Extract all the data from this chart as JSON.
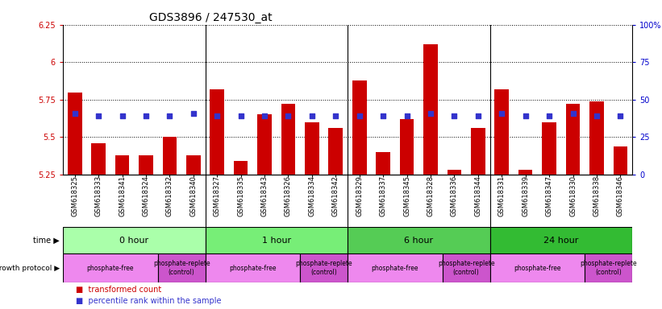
{
  "title": "GDS3896 / 247530_at",
  "samples": [
    "GSM618325",
    "GSM618333",
    "GSM618341",
    "GSM618324",
    "GSM618332",
    "GSM618340",
    "GSM618327",
    "GSM618335",
    "GSM618343",
    "GSM618326",
    "GSM618334",
    "GSM618342",
    "GSM618329",
    "GSM618337",
    "GSM618345",
    "GSM618328",
    "GSM618336",
    "GSM618344",
    "GSM618331",
    "GSM618339",
    "GSM618347",
    "GSM618330",
    "GSM618338",
    "GSM618346"
  ],
  "transformed_count": [
    5.8,
    5.46,
    5.38,
    5.38,
    5.5,
    5.38,
    5.82,
    5.34,
    5.65,
    5.72,
    5.6,
    5.56,
    5.88,
    5.4,
    5.62,
    6.12,
    5.28,
    5.56,
    5.82,
    5.28,
    5.6,
    5.72,
    5.74,
    5.44
  ],
  "percentile_rank": [
    5.66,
    5.64,
    5.64,
    5.64,
    5.64,
    5.66,
    5.64,
    5.64,
    5.64,
    5.64,
    5.64,
    5.64,
    5.64,
    5.64,
    5.64,
    5.66,
    5.64,
    5.64,
    5.66,
    5.64,
    5.64,
    5.66,
    5.64,
    5.64
  ],
  "ylim": [
    5.25,
    6.25
  ],
  "yticks": [
    5.25,
    5.5,
    5.75,
    6.0,
    6.25
  ],
  "ytick_labels": [
    "5.25",
    "5.5",
    "5.75",
    "6",
    "6.25"
  ],
  "y2lim": [
    0,
    100
  ],
  "y2ticks": [
    0,
    25,
    50,
    75,
    100
  ],
  "y2tick_labels": [
    "0",
    "25",
    "50",
    "75",
    "100%"
  ],
  "bar_color": "#cc0000",
  "dot_color": "#3333cc",
  "time_groups": [
    {
      "label": "0 hour",
      "start": 0,
      "end": 6,
      "color": "#aaffaa"
    },
    {
      "label": "1 hour",
      "start": 6,
      "end": 12,
      "color": "#77ee77"
    },
    {
      "label": "6 hour",
      "start": 12,
      "end": 18,
      "color": "#55cc55"
    },
    {
      "label": "24 hour",
      "start": 18,
      "end": 24,
      "color": "#33bb33"
    }
  ],
  "protocol_groups": [
    {
      "label": "phosphate-free",
      "start": 0,
      "end": 4,
      "color": "#ee88ee"
    },
    {
      "label": "phosphate-replete\n(control)",
      "start": 4,
      "end": 6,
      "color": "#cc55cc"
    },
    {
      "label": "phosphate-free",
      "start": 6,
      "end": 10,
      "color": "#ee88ee"
    },
    {
      "label": "phosphate-replete\n(control)",
      "start": 10,
      "end": 12,
      "color": "#cc55cc"
    },
    {
      "label": "phosphate-free",
      "start": 12,
      "end": 16,
      "color": "#ee88ee"
    },
    {
      "label": "phosphate-replete\n(control)",
      "start": 16,
      "end": 18,
      "color": "#cc55cc"
    },
    {
      "label": "phosphate-free",
      "start": 18,
      "end": 22,
      "color": "#ee88ee"
    },
    {
      "label": "phosphate-replete\n(control)",
      "start": 22,
      "end": 24,
      "color": "#cc55cc"
    }
  ],
  "ylabel_color": "#cc0000",
  "y2label_color": "#0000cc",
  "title_fontsize": 10,
  "tick_fontsize": 7,
  "xtick_fontsize": 6,
  "label_fontsize": 8,
  "legend_red": "transformed count",
  "legend_blue": "percentile rank within the sample"
}
